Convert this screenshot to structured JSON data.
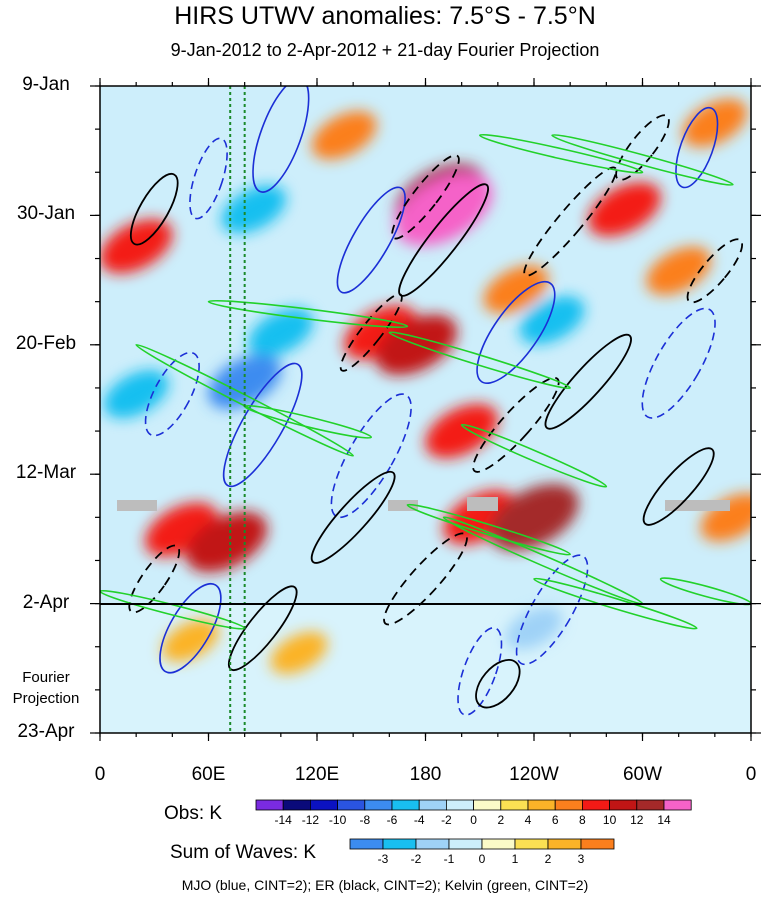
{
  "title": "HIRS UTWV anomalies: 7.5°S - 7.5°N",
  "subtitle": "9-Jan-2012 to 2-Apr-2012 + 21-day Fourier Projection",
  "chart_data": {
    "type": "heatmap",
    "title": "HIRS UTWV anomalies: 7.5°S - 7.5°N",
    "subtitle": "9-Jan-2012 to 2-Apr-2012 + 21-day Fourier Projection",
    "x_tick_labels": [
      "0",
      "60E",
      "120E",
      "180",
      "120W",
      "60W",
      "0"
    ],
    "x_ticks_degrees": [
      0,
      60,
      120,
      180,
      240,
      300,
      360
    ],
    "xlim": [
      0,
      360
    ],
    "y_tick_labels": [
      "9-Jan",
      "30-Jan",
      "20-Feb",
      "12-Mar",
      "2-Apr",
      "23-Apr"
    ],
    "y_ticks_day": [
      0,
      21,
      42,
      63,
      84,
      105
    ],
    "ylim_day": [
      0,
      105
    ],
    "observation_end_label": "2-Apr",
    "projection_label": "Fourier Projection",
    "obs_colorbar": {
      "label": "Obs: K",
      "levels": [
        -14,
        -12,
        -10,
        -8,
        -6,
        -4,
        -2,
        0,
        2,
        4,
        6,
        8,
        10,
        12,
        14
      ],
      "colors": [
        "#7a2be0",
        "#0a0a7a",
        "#0b12c2",
        "#2a54e0",
        "#3c8cf0",
        "#19bff0",
        "#9fd2f7",
        "#cdeefb",
        "#fbfbc8",
        "#fbe053",
        "#fbb328",
        "#fb7f1d",
        "#f31a16",
        "#c11515",
        "#a42929",
        "#f562c8"
      ]
    },
    "waves_colorbar": {
      "label": "Sum of Waves: K",
      "levels": [
        -3,
        -2,
        -1,
        0,
        1,
        2,
        3
      ],
      "colors": [
        "#3c8cf0",
        "#19bff0",
        "#9fd2f7",
        "#cdeefb",
        "#fbfbc8",
        "#fbe053",
        "#fbb328",
        "#fb7f1d"
      ]
    },
    "contours": [
      {
        "name": "MJO",
        "color": "blue",
        "cint": 2
      },
      {
        "name": "ER",
        "color": "black",
        "cint": 2
      },
      {
        "name": "Kelvin",
        "color": "green",
        "cint": 2
      }
    ],
    "vertical_reference_lines_lon": [
      72,
      80
    ],
    "anomaly_features": [
      {
        "lon": 190,
        "day": 20,
        "value": 14
      },
      {
        "lon": 188,
        "day": 18,
        "value": 12
      },
      {
        "lon": 175,
        "day": 42,
        "value": 10
      },
      {
        "lon": 155,
        "day": 40,
        "value": 8
      },
      {
        "lon": 200,
        "day": 56,
        "value": 8
      },
      {
        "lon": 230,
        "day": 33,
        "value": 6
      },
      {
        "lon": 240,
        "day": 70,
        "value": 12
      },
      {
        "lon": 210,
        "day": 70,
        "value": 8
      },
      {
        "lon": 70,
        "day": 74,
        "value": 10
      },
      {
        "lon": 45,
        "day": 72,
        "value": 8
      },
      {
        "lon": 20,
        "day": 26,
        "value": 8
      },
      {
        "lon": 290,
        "day": 20,
        "value": 8
      },
      {
        "lon": 320,
        "day": 30,
        "value": 6
      },
      {
        "lon": 340,
        "day": 6,
        "value": 6
      },
      {
        "lon": 350,
        "day": 70,
        "value": 6
      },
      {
        "lon": 135,
        "day": 8,
        "value": 6
      },
      {
        "lon": 80,
        "day": 48,
        "value": -8
      },
      {
        "lon": 100,
        "day": 40,
        "value": -6
      },
      {
        "lon": 85,
        "day": 20,
        "value": -6
      },
      {
        "lon": 20,
        "day": 50,
        "value": -6
      },
      {
        "lon": 250,
        "day": 38,
        "value": -6
      },
      {
        "lon": 240,
        "day": 88,
        "value": -4
      },
      {
        "lon": 110,
        "day": 92,
        "value": 4
      },
      {
        "lon": 50,
        "day": 90,
        "value": 4
      }
    ]
  },
  "legend": {
    "obs_label": "Obs: K",
    "obs_ticks": [
      "-14",
      "-12",
      "-10",
      "-8",
      "-6",
      "-4",
      "-2",
      "0",
      "2",
      "4",
      "6",
      "8",
      "10",
      "12",
      "14"
    ],
    "waves_label": "Sum of Waves: K",
    "waves_ticks": [
      "-3",
      "-2",
      "-1",
      "0",
      "1",
      "2",
      "3"
    ]
  },
  "footer": "MJO (blue, CINT=2); ER (black, CINT=2); Kelvin (green, CINT=2)"
}
